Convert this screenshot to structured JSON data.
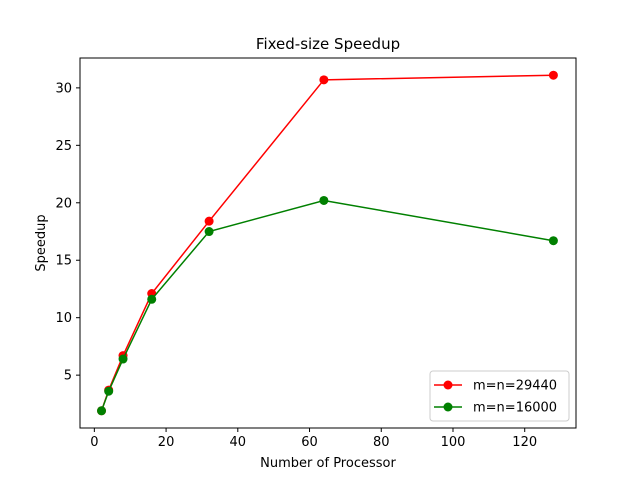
{
  "chart_data": {
    "type": "line",
    "title": "Fixed-size Speedup",
    "xlabel": "Number of Processor",
    "ylabel": "Speedup",
    "xlim": [
      -4,
      134.3
    ],
    "ylim": [
      0.4,
      32.6
    ],
    "xticks": [
      0,
      20,
      40,
      60,
      80,
      100,
      120
    ],
    "yticks": [
      5,
      10,
      15,
      20,
      25,
      30
    ],
    "grid": false,
    "legend_position": "lower-right",
    "series": [
      {
        "name": "m=n=29440",
        "color": "#ff0000",
        "x": [
          2,
          4,
          8,
          16,
          32,
          64,
          128
        ],
        "y": [
          1.9,
          3.7,
          6.7,
          12.1,
          18.4,
          30.7,
          31.1
        ]
      },
      {
        "name": "m=n=16000",
        "color": "#008000",
        "x": [
          2,
          4,
          8,
          16,
          32,
          64,
          128
        ],
        "y": [
          1.9,
          3.6,
          6.4,
          11.6,
          17.5,
          20.2,
          16.7
        ]
      }
    ]
  }
}
